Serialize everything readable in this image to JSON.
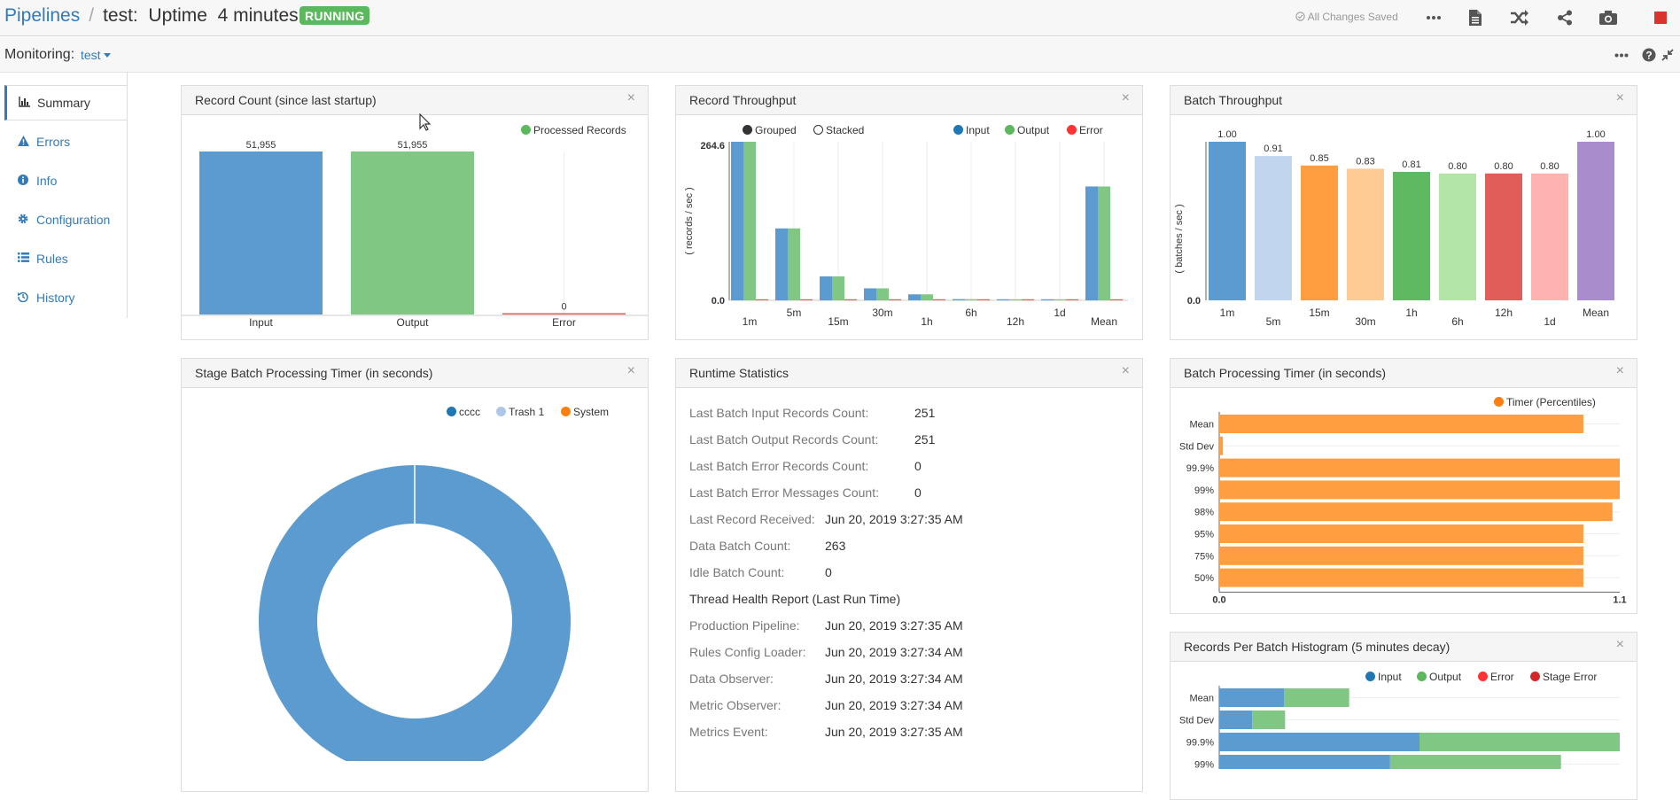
{
  "topbar": {
    "pipelines_link": "Pipelines",
    "separator": "/",
    "pipeline_title": "test:  Uptime  4 minutes",
    "status_badge": "RUNNING",
    "saved_status": "All Changes Saved",
    "icons": [
      "more-icon",
      "document-icon",
      "shuffle-icon",
      "share-icon",
      "camera-icon",
      "stop-icon"
    ]
  },
  "monitoring": {
    "label": "Monitoring:",
    "selected": "test",
    "icons": [
      "more-icon",
      "help-icon",
      "collapse-icon"
    ]
  },
  "sidebar": {
    "items": [
      {
        "label": "Summary",
        "icon": "bar-chart-icon",
        "active": true
      },
      {
        "label": "Errors",
        "icon": "warning-icon",
        "active": false
      },
      {
        "label": "Info",
        "icon": "info-icon",
        "active": false
      },
      {
        "label": "Configuration",
        "icon": "gear-icon",
        "active": false
      },
      {
        "label": "Rules",
        "icon": "list-icon",
        "active": false
      },
      {
        "label": "History",
        "icon": "history-icon",
        "active": false
      }
    ]
  },
  "colors": {
    "input": "#1f77b4",
    "output": "#2ca02c",
    "error": "#d62728",
    "bar_blue": "#5b9bd0",
    "bar_green": "#81c784",
    "bar_orange": "#ff9e40"
  },
  "panels": {
    "record_count": {
      "title": "Record Count (since last startup)",
      "legend": "Processed Records"
    },
    "record_throughput": {
      "title": "Record Throughput",
      "grouped": "Grouped",
      "stacked": "Stacked",
      "legend": [
        "Input",
        "Output",
        "Error"
      ],
      "ylabel": "( records / sec )"
    },
    "batch_throughput": {
      "title": "Batch Throughput",
      "ylabel": "( batches / sec )"
    },
    "stage_timer": {
      "title": "Stage Batch Processing Timer (in seconds)",
      "legend": [
        "cccc",
        "Trash 1",
        "System"
      ]
    },
    "runtime": {
      "title": "Runtime Statistics",
      "rows": [
        {
          "label": "Last Batch Input Records Count:",
          "value": "251"
        },
        {
          "label": "Last Batch Output Records Count:",
          "value": "251"
        },
        {
          "label": "Last Batch Error Records Count:",
          "value": "0"
        },
        {
          "label": "Last Batch Error Messages Count:",
          "value": "0"
        },
        {
          "label": "Last Record Received:",
          "value": "Jun 20, 2019 3:27:35 AM"
        },
        {
          "label": "Data Batch Count:",
          "value": "263"
        },
        {
          "label": "Idle Batch Count:",
          "value": "0"
        }
      ],
      "thread_header": "Thread Health Report (Last Run Time)",
      "thread_rows": [
        {
          "label": "Production Pipeline:",
          "value": "Jun 20, 2019 3:27:35 AM"
        },
        {
          "label": "Rules Config Loader:",
          "value": "Jun 20, 2019 3:27:34 AM"
        },
        {
          "label": "Data Observer:",
          "value": "Jun 20, 2019 3:27:34 AM"
        },
        {
          "label": "Metric Observer:",
          "value": "Jun 20, 2019 3:27:34 AM"
        },
        {
          "label": "Metrics Event:",
          "value": "Jun 20, 2019 3:27:35 AM"
        }
      ]
    },
    "batch_timer": {
      "title": "Batch Processing Timer (in seconds)",
      "legend": "Timer (Percentiles)"
    },
    "histogram": {
      "title": "Records Per Batch Histogram (5 minutes decay)",
      "legend": [
        "Input",
        "Output",
        "Error",
        "Stage Error"
      ]
    }
  },
  "chart_data": [
    {
      "type": "bar",
      "title": "Record Count (since last startup)",
      "categories": [
        "Input",
        "Output",
        "Error"
      ],
      "values": [
        51955,
        51955,
        0
      ],
      "labels": [
        "51,955",
        "51,955",
        "0"
      ],
      "series_name": "Processed Records"
    },
    {
      "type": "bar",
      "title": "Record Throughput",
      "categories": [
        "1m",
        "5m",
        "15m",
        "30m",
        "1h",
        "6h",
        "12h",
        "1d",
        "Mean"
      ],
      "series": [
        {
          "name": "Input",
          "values": [
            264.6,
            120,
            40,
            20,
            10,
            2,
            0.5,
            0.5,
            190
          ]
        },
        {
          "name": "Output",
          "values": [
            264.6,
            120,
            40,
            20,
            10,
            2,
            0.5,
            0.5,
            190
          ]
        },
        {
          "name": "Error",
          "values": [
            0,
            0,
            0,
            0,
            0,
            0,
            0,
            0,
            0
          ]
        }
      ],
      "ylim": [
        0.0,
        264.6
      ],
      "ytick_labels": [
        "0.0",
        "264.6"
      ],
      "ylabel": "( records / sec )"
    },
    {
      "type": "bar",
      "title": "Batch Throughput",
      "categories": [
        "1m",
        "5m",
        "15m",
        "30m",
        "1h",
        "6h",
        "12h",
        "1d",
        "Mean"
      ],
      "values": [
        1.0,
        0.91,
        0.85,
        0.83,
        0.81,
        0.8,
        0.8,
        0.8,
        1.0
      ],
      "labels": [
        "1.00",
        "0.91",
        "0.85",
        "0.83",
        "0.81",
        "0.80",
        "0.80",
        "0.80",
        "1.00"
      ],
      "bar_colors": [
        "#1f77b4",
        "#aec7e8",
        "#ff7f0e",
        "#ffbb78",
        "#2ca02c",
        "#98df8a",
        "#d62728",
        "#ff9896",
        "#9467bd"
      ],
      "ylim": [
        0.0,
        1.0
      ],
      "ytick_labels": [
        "0.0"
      ],
      "ylabel": "( batches / sec )"
    },
    {
      "type": "pie",
      "title": "Stage Batch Processing Timer (in seconds)",
      "donut": true,
      "slices": [
        {
          "name": "cccc",
          "value": 1.0
        },
        {
          "name": "Trash 1",
          "value": 0.0
        },
        {
          "name": "System",
          "value": 0.0
        }
      ]
    },
    {
      "type": "bar",
      "orientation": "horizontal",
      "title": "Batch Processing Timer (in seconds)",
      "categories": [
        "Mean",
        "Std Dev",
        "99.9%",
        "99%",
        "98%",
        "95%",
        "75%",
        "50%"
      ],
      "values": [
        1.0,
        0.01,
        1.1,
        1.1,
        1.08,
        1.0,
        1.0,
        1.0
      ],
      "xlim": [
        0.0,
        1.1
      ],
      "xtick_labels": [
        "0.0",
        "1.1"
      ],
      "series_name": "Timer (Percentiles)"
    },
    {
      "type": "bar",
      "orientation": "horizontal",
      "stacked": true,
      "title": "Records Per Batch Histogram (5 minutes decay)",
      "categories": [
        "Mean",
        "Std Dev",
        "99.9%",
        "99%"
      ],
      "series": [
        {
          "name": "Input",
          "values": [
            73,
            37,
            225,
            192
          ]
        },
        {
          "name": "Output",
          "values": [
            73,
            37,
            225,
            192
          ]
        },
        {
          "name": "Error",
          "values": [
            0,
            0,
            0,
            0
          ]
        },
        {
          "name": "Stage Error",
          "values": [
            0,
            0,
            0,
            0
          ]
        }
      ],
      "xlim": [
        0,
        450
      ]
    }
  ]
}
